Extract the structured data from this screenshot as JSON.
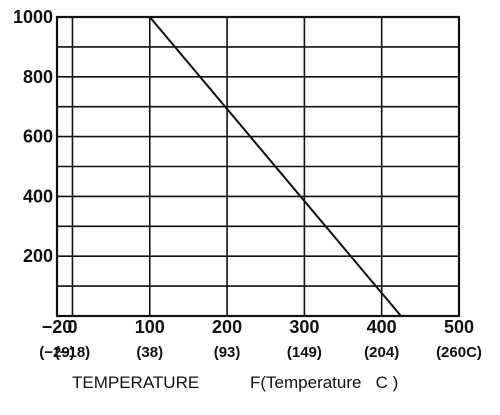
{
  "chart_data": {
    "type": "line",
    "title": "",
    "xlim": [
      -20,
      500
    ],
    "ylim": [
      0,
      1000
    ],
    "grid": true,
    "x_ticks": [
      {
        "value": -20,
        "label": "−20",
        "sublabel": "(−29)"
      },
      {
        "value": 0,
        "label": "0",
        "sublabel": "(−18)"
      },
      {
        "value": 100,
        "label": "100",
        "sublabel": "(38)"
      },
      {
        "value": 200,
        "label": "200",
        "sublabel": "(93)"
      },
      {
        "value": 300,
        "label": "300",
        "sublabel": "(149)"
      },
      {
        "value": 400,
        "label": "400",
        "sublabel": "(204)"
      },
      {
        "value": 500,
        "label": "500",
        "sublabel": "(260C)"
      }
    ],
    "x_gridlines": [
      0,
      100,
      200,
      300,
      400
    ],
    "y_ticks": [
      {
        "value": 200,
        "label": "200"
      },
      {
        "value": 400,
        "label": "400"
      },
      {
        "value": 600,
        "label": "600"
      },
      {
        "value": 800,
        "label": "800"
      },
      {
        "value": 1000,
        "label": "1000"
      }
    ],
    "y_gridlines": [
      100,
      200,
      300,
      400,
      500,
      600,
      700,
      800,
      900
    ],
    "series": [
      {
        "x": [
          100,
          425
        ],
        "y": [
          1000,
          0
        ]
      }
    ],
    "xlabel_left": "TEMPERATURE",
    "xlabel_right": "F(Temperature   C )",
    "colors": {
      "line": "#111111",
      "grid": "#111111",
      "text": "#111111"
    }
  }
}
